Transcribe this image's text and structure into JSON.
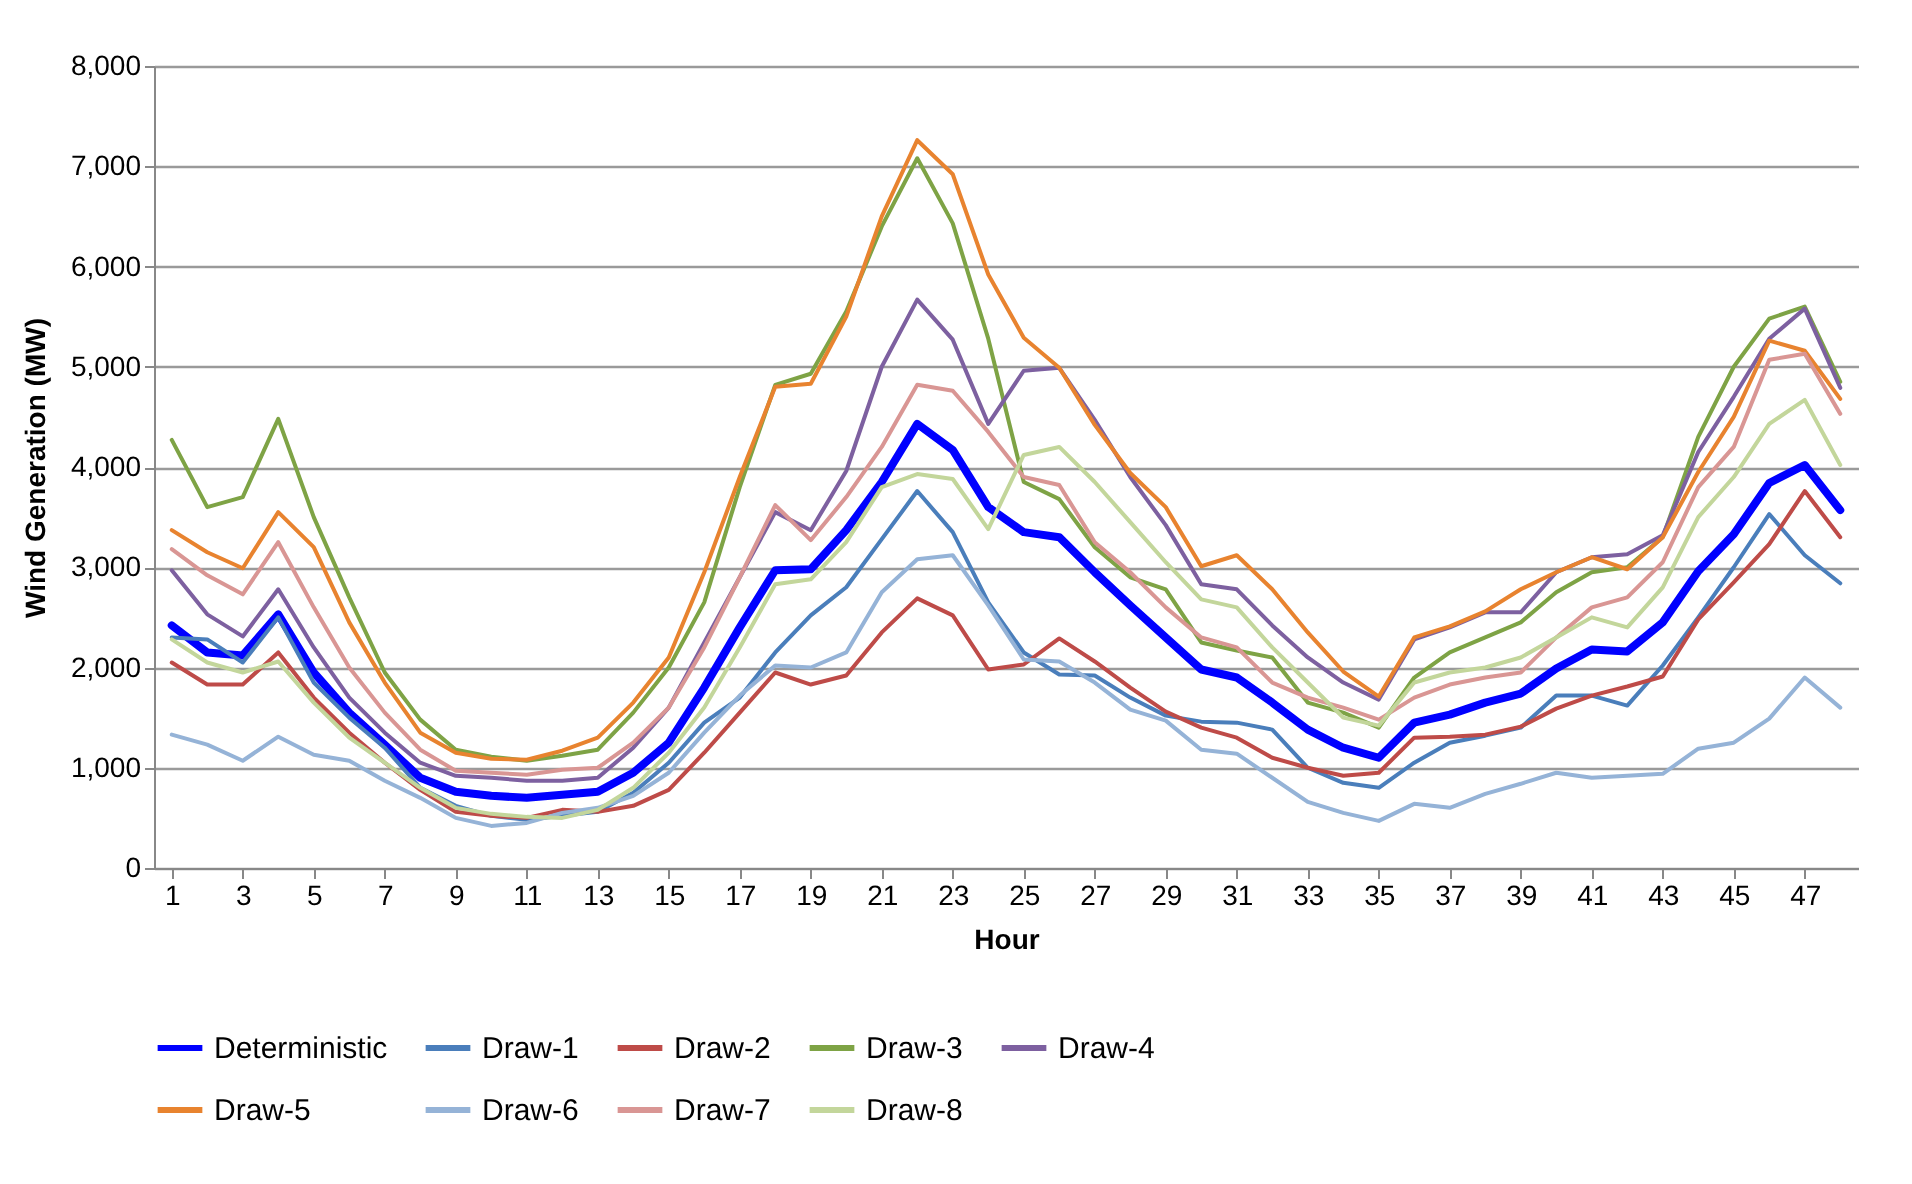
{
  "chart_data": {
    "type": "line",
    "xlabel": "Hour",
    "ylabel": "Wind Generation (MW)",
    "x": [
      1,
      2,
      3,
      4,
      5,
      6,
      7,
      8,
      9,
      10,
      11,
      12,
      13,
      14,
      15,
      16,
      17,
      18,
      19,
      20,
      21,
      22,
      23,
      24,
      25,
      26,
      27,
      28,
      29,
      30,
      31,
      32,
      33,
      34,
      35,
      36,
      37,
      38,
      39,
      40,
      41,
      42,
      43,
      44,
      45,
      46,
      47,
      48
    ],
    "xlim": [
      0.5,
      48.5
    ],
    "xticks": [
      1,
      3,
      5,
      7,
      9,
      11,
      13,
      15,
      17,
      19,
      21,
      23,
      25,
      27,
      29,
      31,
      33,
      35,
      37,
      39,
      41,
      43,
      45,
      47
    ],
    "ylim": [
      0,
      8000
    ],
    "yticks": [
      0,
      {
        "value": 1000,
        "label": "1,000"
      },
      {
        "value": 2000,
        "label": "2,000"
      },
      {
        "value": 3000,
        "label": "3,000"
      },
      {
        "value": 4000,
        "label": "4,000"
      },
      {
        "value": 5000,
        "label": "5,000"
      },
      {
        "value": 6000,
        "label": "6,000"
      },
      {
        "value": 7000,
        "label": "7,000"
      },
      {
        "value": 8000,
        "label": "8,000"
      }
    ],
    "grid": "y",
    "legend": "bottom",
    "marker": "none",
    "line_style": "solid",
    "series": [
      {
        "name": "Deterministic",
        "color": "#0000ff",
        "values": [
          2420,
          2150,
          2120,
          2530,
          1950,
          1550,
          1230,
          900,
          760,
          720,
          700,
          730,
          760,
          950,
          1250,
          1800,
          2400,
          2970,
          2980,
          3370,
          3850,
          4430,
          4170,
          3600,
          3350,
          3300,
          2950,
          2620,
          2300,
          1980,
          1900,
          1650,
          1380,
          1200,
          1100,
          1450,
          1530,
          1650,
          1740,
          1990,
          2180,
          2160,
          2450,
          2960,
          3330,
          3840,
          4020,
          3570
        ]
      },
      {
        "name": "Draw-1",
        "color": "#4a7ebb",
        "values": [
          2300,
          2280,
          2050,
          2500,
          1850,
          1500,
          1200,
          800,
          620,
          520,
          480,
          520,
          560,
          750,
          1050,
          1450,
          1700,
          2150,
          2520,
          2800,
          3280,
          3760,
          3350,
          2650,
          2150,
          1930,
          1920,
          1700,
          1520,
          1460,
          1450,
          1380,
          1000,
          850,
          800,
          1050,
          1250,
          1320,
          1400,
          1720,
          1720,
          1620,
          2020,
          2500,
          3000,
          3530,
          3120,
          2840
        ]
      },
      {
        "name": "Draw-2",
        "color": "#be4b48",
        "values": [
          2050,
          1830,
          1830,
          2150,
          1700,
          1350,
          1050,
          780,
          560,
          520,
          500,
          580,
          560,
          620,
          780,
          1150,
          1550,
          1950,
          1830,
          1920,
          2350,
          2690,
          2520,
          1980,
          2030,
          2290,
          2060,
          1800,
          1560,
          1400,
          1300,
          1100,
          1000,
          920,
          950,
          1300,
          1310,
          1330,
          1410,
          1590,
          1720,
          1810,
          1910,
          2480,
          2850,
          3230,
          3760,
          3300
        ]
      },
      {
        "name": "Draw-3",
        "color": "#7ea345",
        "values": [
          4270,
          3600,
          3700,
          4480,
          3500,
          2700,
          1950,
          1480,
          1180,
          1110,
          1070,
          1120,
          1180,
          1550,
          2000,
          2650,
          3800,
          4820,
          4930,
          5550,
          6400,
          7080,
          6430,
          5280,
          3850,
          3680,
          3200,
          2900,
          2780,
          2250,
          2170,
          2100,
          1650,
          1550,
          1400,
          1900,
          2150,
          2300,
          2450,
          2750,
          2950,
          3000,
          3300,
          4300,
          5000,
          5480,
          5600,
          4850
        ]
      },
      {
        "name": "Draw-4",
        "color": "#7d60a0",
        "values": [
          2970,
          2530,
          2310,
          2780,
          2200,
          1700,
          1350,
          1050,
          920,
          900,
          870,
          870,
          900,
          1200,
          1600,
          2250,
          2900,
          3550,
          3370,
          3960,
          5000,
          5670,
          5270,
          4430,
          4960,
          4990,
          4470,
          3900,
          3420,
          2830,
          2780,
          2420,
          2100,
          1850,
          1680,
          2280,
          2400,
          2550,
          2550,
          2950,
          3100,
          3130,
          3320,
          4150,
          4700,
          5280,
          5580,
          4790
        ]
      },
      {
        "name": "Draw-5",
        "color": "#e8832f",
        "values": [
          3370,
          3150,
          2990,
          3550,
          3200,
          2450,
          1850,
          1350,
          1150,
          1090,
          1080,
          1170,
          1300,
          1650,
          2100,
          2950,
          3900,
          4800,
          4830,
          5500,
          6500,
          7260,
          6920,
          5920,
          5290,
          4990,
          4420,
          3940,
          3600,
          3010,
          3120,
          2780,
          2350,
          1960,
          1710,
          2300,
          2410,
          2560,
          2780,
          2950,
          3100,
          2980,
          3300,
          3950,
          4500,
          5260,
          5160,
          4680
        ]
      },
      {
        "name": "Draw-6",
        "color": "#95b3d7",
        "values": [
          1330,
          1230,
          1070,
          1310,
          1130,
          1070,
          870,
          700,
          500,
          420,
          450,
          550,
          600,
          720,
          950,
          1350,
          1720,
          2020,
          2000,
          2150,
          2750,
          3080,
          3120,
          2620,
          2080,
          2060,
          1850,
          1580,
          1470,
          1180,
          1140,
          900,
          660,
          550,
          470,
          640,
          600,
          740,
          840,
          950,
          900,
          920,
          940,
          1190,
          1250,
          1490,
          1900,
          1600
        ]
      },
      {
        "name": "Draw-7",
        "color": "#d99694",
        "values": [
          3180,
          2920,
          2730,
          3250,
          2600,
          2000,
          1550,
          1180,
          970,
          950,
          930,
          980,
          1000,
          1250,
          1600,
          2200,
          2900,
          3620,
          3270,
          3700,
          4200,
          4820,
          4760,
          4350,
          3900,
          3820,
          3250,
          2950,
          2600,
          2300,
          2200,
          1850,
          1700,
          1600,
          1480,
          1700,
          1830,
          1900,
          1950,
          2300,
          2600,
          2700,
          3050,
          3800,
          4200,
          5070,
          5130,
          4530
        ]
      },
      {
        "name": "Draw-8",
        "color": "#c3d69b",
        "values": [
          2280,
          2050,
          1950,
          2060,
          1650,
          1300,
          1050,
          800,
          600,
          540,
          510,
          500,
          580,
          800,
          1150,
          1600,
          2200,
          2830,
          2880,
          3250,
          3800,
          3930,
          3880,
          3380,
          4120,
          4200,
          3850,
          3450,
          3050,
          2680,
          2600,
          2200,
          1850,
          1500,
          1420,
          1850,
          1950,
          2000,
          2100,
          2300,
          2500,
          2400,
          2800,
          3500,
          3900,
          4430,
          4670,
          4020
        ]
      }
    ]
  }
}
